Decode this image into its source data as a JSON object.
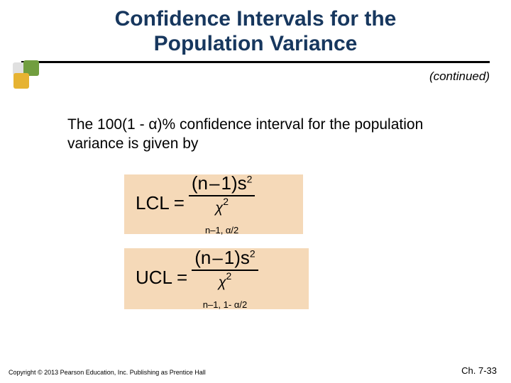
{
  "title_line1": "Confidence Intervals for the",
  "title_line2": "Population Variance",
  "continued": "(continued)",
  "body": "The 100(1 - α)% confidence interval for the population variance is given by",
  "lcl": {
    "lhs": "LCL",
    "num_a": "(n",
    "num_minus": "–",
    "num_b": "1)s",
    "num_sup": "2",
    "den_chi": "χ",
    "den_sup": "2",
    "den_sub": "n–1, α/2"
  },
  "ucl": {
    "lhs": "UCL",
    "num_a": "(n",
    "num_minus": "–",
    "num_b": "1)s",
    "num_sup": "2",
    "den_chi": "χ",
    "den_sup": "2",
    "den_sub": "n–1, 1- α/2"
  },
  "copyright": "Copyright © 2013 Pearson Education, Inc. Publishing as Prentice Hall",
  "chapter": "Ch. 7-33",
  "colors": {
    "title": "#17375e",
    "formula_bg": "#f5d9b8",
    "underline": "#000000",
    "logo_green": "#719e3f",
    "logo_yellow": "#e6b332",
    "logo_grey": "#e0e0e0"
  }
}
